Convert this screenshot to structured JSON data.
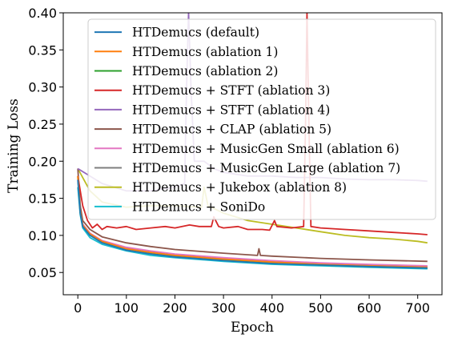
{
  "chart_data": {
    "type": "line",
    "xlabel": "Epoch",
    "ylabel": "Training Loss",
    "xlim": [
      -30,
      750
    ],
    "ylim": [
      0.02,
      0.4
    ],
    "xticks": [
      0,
      100,
      200,
      300,
      400,
      500,
      600,
      700
    ],
    "yticks": [
      0.05,
      0.1,
      0.15,
      0.2,
      0.25,
      0.3,
      0.35,
      0.4
    ],
    "ytick_labels": [
      "0.05",
      "0.10",
      "0.15",
      "0.20",
      "0.25",
      "0.30",
      "0.35",
      "0.40"
    ],
    "grid": false,
    "legend_position": "upper-right",
    "series": [
      {
        "name": "HTDemucs (default)",
        "color": "#1f77b4",
        "points": [
          [
            0,
            0.175
          ],
          [
            5,
            0.13
          ],
          [
            10,
            0.112
          ],
          [
            25,
            0.1
          ],
          [
            50,
            0.09
          ],
          [
            100,
            0.08
          ],
          [
            150,
            0.075
          ],
          [
            200,
            0.071
          ],
          [
            300,
            0.066
          ],
          [
            400,
            0.062
          ],
          [
            500,
            0.06
          ],
          [
            600,
            0.058
          ],
          [
            720,
            0.056
          ]
        ]
      },
      {
        "name": "HTDemucs (ablation 1)",
        "color": "#ff7f0e",
        "points": [
          [
            0,
            0.18
          ],
          [
            5,
            0.132
          ],
          [
            10,
            0.114
          ],
          [
            25,
            0.102
          ],
          [
            50,
            0.092
          ],
          [
            100,
            0.082
          ],
          [
            150,
            0.077
          ],
          [
            200,
            0.073
          ],
          [
            300,
            0.068
          ],
          [
            400,
            0.064
          ],
          [
            500,
            0.061
          ],
          [
            600,
            0.059
          ],
          [
            720,
            0.057
          ]
        ]
      },
      {
        "name": "HTDemucs (ablation 2)",
        "color": "#2ca02c",
        "points": [
          [
            0,
            0.178
          ],
          [
            5,
            0.131
          ],
          [
            10,
            0.113
          ],
          [
            25,
            0.101
          ],
          [
            50,
            0.091
          ],
          [
            100,
            0.081
          ],
          [
            150,
            0.076
          ],
          [
            200,
            0.072
          ],
          [
            300,
            0.067
          ],
          [
            400,
            0.063
          ],
          [
            500,
            0.06
          ],
          [
            600,
            0.058
          ],
          [
            720,
            0.056
          ]
        ]
      },
      {
        "name": "HTDemucs + STFT (ablation 3)",
        "color": "#d62728",
        "points": [
          [
            0,
            0.18
          ],
          [
            10,
            0.14
          ],
          [
            20,
            0.12
          ],
          [
            30,
            0.11
          ],
          [
            40,
            0.115
          ],
          [
            50,
            0.108
          ],
          [
            60,
            0.112
          ],
          [
            80,
            0.11
          ],
          [
            100,
            0.112
          ],
          [
            120,
            0.108
          ],
          [
            150,
            0.11
          ],
          [
            180,
            0.112
          ],
          [
            200,
            0.11
          ],
          [
            230,
            0.114
          ],
          [
            250,
            0.112
          ],
          [
            275,
            0.112
          ],
          [
            280,
            0.125
          ],
          [
            290,
            0.112
          ],
          [
            300,
            0.11
          ],
          [
            330,
            0.112
          ],
          [
            350,
            0.108
          ],
          [
            380,
            0.108
          ],
          [
            395,
            0.107
          ],
          [
            405,
            0.12
          ],
          [
            410,
            0.112
          ],
          [
            440,
            0.11
          ],
          [
            465,
            0.112
          ],
          [
            469,
            0.25
          ],
          [
            472,
            0.4
          ],
          [
            476,
            0.25
          ],
          [
            480,
            0.112
          ],
          [
            500,
            0.11
          ],
          [
            550,
            0.108
          ],
          [
            600,
            0.106
          ],
          [
            650,
            0.104
          ],
          [
            700,
            0.102
          ],
          [
            720,
            0.101
          ]
        ]
      },
      {
        "name": "HTDemucs + STFT (ablation 4)",
        "color": "#9467bd",
        "points": [
          [
            0,
            0.19
          ],
          [
            50,
            0.17
          ],
          [
            100,
            0.16
          ],
          [
            150,
            0.16
          ],
          [
            200,
            0.165
          ],
          [
            220,
            0.17
          ],
          [
            224,
            0.3
          ],
          [
            228,
            0.4
          ],
          [
            233,
            0.3
          ],
          [
            240,
            0.2
          ],
          [
            260,
            0.2
          ],
          [
            280,
            0.19
          ],
          [
            300,
            0.185
          ],
          [
            350,
            0.18
          ],
          [
            400,
            0.18
          ],
          [
            450,
            0.178
          ],
          [
            500,
            0.178
          ],
          [
            550,
            0.176
          ],
          [
            600,
            0.175
          ],
          [
            650,
            0.175
          ],
          [
            700,
            0.174
          ],
          [
            720,
            0.173
          ]
        ]
      },
      {
        "name": "HTDemucs + CLAP (ablation 5)",
        "color": "#8c564b",
        "points": [
          [
            0,
            0.19
          ],
          [
            5,
            0.14
          ],
          [
            10,
            0.12
          ],
          [
            25,
            0.108
          ],
          [
            50,
            0.098
          ],
          [
            100,
            0.09
          ],
          [
            150,
            0.085
          ],
          [
            200,
            0.081
          ],
          [
            300,
            0.076
          ],
          [
            370,
            0.073
          ],
          [
            373,
            0.082
          ],
          [
            376,
            0.073
          ],
          [
            400,
            0.072
          ],
          [
            500,
            0.069
          ],
          [
            600,
            0.067
          ],
          [
            720,
            0.065
          ]
        ]
      },
      {
        "name": "HTDemucs + MusicGen Small (ablation 6)",
        "color": "#e377c2",
        "points": [
          [
            0,
            0.18
          ],
          [
            5,
            0.133
          ],
          [
            10,
            0.115
          ],
          [
            25,
            0.103
          ],
          [
            50,
            0.093
          ],
          [
            100,
            0.084
          ],
          [
            150,
            0.079
          ],
          [
            200,
            0.075
          ],
          [
            300,
            0.07
          ],
          [
            400,
            0.066
          ],
          [
            500,
            0.063
          ],
          [
            600,
            0.061
          ],
          [
            720,
            0.059
          ]
        ]
      },
      {
        "name": "HTDemucs + MusicGen Large (ablation 7)",
        "color": "#7f7f7f",
        "points": [
          [
            0,
            0.18
          ],
          [
            5,
            0.133
          ],
          [
            10,
            0.115
          ],
          [
            25,
            0.102
          ],
          [
            50,
            0.092
          ],
          [
            100,
            0.083
          ],
          [
            150,
            0.078
          ],
          [
            200,
            0.074
          ],
          [
            300,
            0.069
          ],
          [
            400,
            0.065
          ],
          [
            500,
            0.062
          ],
          [
            600,
            0.06
          ],
          [
            720,
            0.058
          ]
        ]
      },
      {
        "name": "HTDemucs + Jukebox (ablation 8)",
        "color": "#bcbd22",
        "points": [
          [
            0,
            0.19
          ],
          [
            25,
            0.16
          ],
          [
            50,
            0.145
          ],
          [
            100,
            0.138
          ],
          [
            150,
            0.14
          ],
          [
            200,
            0.14
          ],
          [
            255,
            0.138
          ],
          [
            260,
            0.165
          ],
          [
            268,
            0.14
          ],
          [
            300,
            0.13
          ],
          [
            350,
            0.12
          ],
          [
            400,
            0.115
          ],
          [
            450,
            0.11
          ],
          [
            500,
            0.105
          ],
          [
            550,
            0.1
          ],
          [
            600,
            0.097
          ],
          [
            650,
            0.095
          ],
          [
            700,
            0.092
          ],
          [
            720,
            0.09
          ]
        ]
      },
      {
        "name": "HTDemucs + SoniDo",
        "color": "#17becf",
        "points": [
          [
            0,
            0.165
          ],
          [
            5,
            0.128
          ],
          [
            10,
            0.11
          ],
          [
            25,
            0.097
          ],
          [
            50,
            0.088
          ],
          [
            100,
            0.079
          ],
          [
            150,
            0.073
          ],
          [
            200,
            0.07
          ],
          [
            300,
            0.065
          ],
          [
            400,
            0.061
          ],
          [
            500,
            0.059
          ],
          [
            600,
            0.057
          ],
          [
            720,
            0.055
          ]
        ]
      }
    ]
  }
}
